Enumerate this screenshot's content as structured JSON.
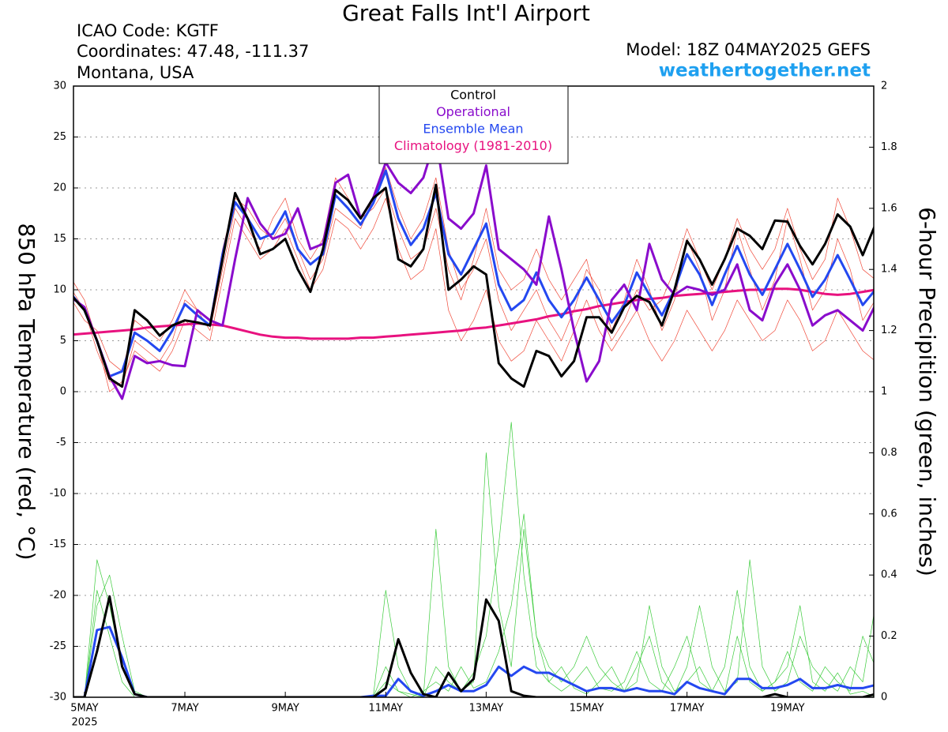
{
  "header": {
    "title": "Great Falls Int'l Airport",
    "info": [
      "ICAO Code: KGTF",
      "Coordinates: 47.48, -111.37",
      "Montana, USA"
    ],
    "model": "Model: 18Z 04MAY2025 GEFS",
    "site": "weathertogether.net"
  },
  "chart_data": {
    "type": "line",
    "ylabel": "850 hPa Temperature (red, °C)",
    "y2label": "6-hour Precipition (green, inches)",
    "x_sublabel": "2025",
    "legend": "upper center",
    "grid": true,
    "xlim": [
      -0.25,
      15.75
    ],
    "xticks": [
      {
        "value": 0,
        "label": "5MAY"
      },
      {
        "value": 2,
        "label": "7MAY"
      },
      {
        "value": 4,
        "label": "9MAY"
      },
      {
        "value": 6,
        "label": "11MAY"
      },
      {
        "value": 8,
        "label": "13MAY"
      },
      {
        "value": 10,
        "label": "15MAY"
      },
      {
        "value": 12,
        "label": "17MAY"
      },
      {
        "value": 14,
        "label": "19MAY"
      }
    ],
    "ylim": [
      -30,
      30
    ],
    "yticks": [
      -30,
      -25,
      -20,
      -15,
      -10,
      -5,
      0,
      5,
      10,
      15,
      20,
      25,
      30
    ],
    "y2lim": [
      0,
      2
    ],
    "y2ticks": [
      0,
      0.2,
      0.4,
      0.6,
      0.8,
      1,
      1.2,
      1.4,
      1.6,
      1.8,
      2
    ],
    "x": [
      -0.25,
      0,
      0.25,
      0.5,
      0.75,
      1,
      1.25,
      1.5,
      1.75,
      2,
      2.25,
      2.5,
      2.75,
      3,
      3.25,
      3.5,
      3.75,
      4,
      4.25,
      4.5,
      4.75,
      5,
      5.25,
      5.5,
      5.75,
      6,
      6.25,
      6.5,
      6.75,
      7,
      7.25,
      7.5,
      7.75,
      8,
      8.25,
      8.5,
      8.75,
      9,
      9.25,
      9.5,
      9.75,
      10,
      10.25,
      10.5,
      10.75,
      11,
      11.25,
      11.5,
      11.75,
      12,
      12.25,
      12.5,
      12.75,
      13,
      13.25,
      13.5,
      13.75,
      14,
      14.25,
      14.5,
      14.75,
      15,
      15.25,
      15.5,
      15.75
    ],
    "series": [
      {
        "color": "#f04a3a",
        "width": 0.7,
        "values": [
          10,
          8,
          4,
          1,
          0.5,
          5,
          4,
          3,
          5,
          9,
          8,
          7,
          14,
          19,
          18,
          16,
          15,
          17,
          14,
          11,
          13,
          18,
          17,
          16,
          19,
          22,
          18,
          15,
          17,
          21,
          14,
          10,
          12,
          15,
          9,
          6,
          8,
          10,
          7,
          5,
          8,
          12,
          10,
          6,
          9,
          13,
          10,
          6,
          9,
          15,
          12,
          7,
          10,
          16,
          12,
          8,
          11,
          17,
          13,
          8,
          10,
          15,
          12,
          7,
          9
        ]
      },
      {
        "color": "#f04a3a",
        "width": 0.7,
        "values": [
          9,
          7,
          6,
          3,
          2,
          7,
          6,
          5,
          7,
          10,
          8,
          6,
          12,
          18,
          16,
          14,
          17,
          19,
          15,
          13,
          15,
          21,
          19,
          17,
          18,
          20,
          16,
          13,
          14,
          18,
          12,
          9,
          13,
          18,
          12,
          10,
          11,
          14,
          11,
          9,
          11,
          13,
          8,
          5,
          7,
          10,
          8,
          9,
          12,
          16,
          13,
          10,
          13,
          17,
          14,
          12,
          14,
          18,
          14,
          11,
          13,
          19,
          16,
          12,
          11
        ]
      },
      {
        "color": "#f04a3a",
        "width": 0.7,
        "values": [
          11,
          9,
          5,
          0,
          1,
          4,
          3,
          2,
          4,
          7,
          6,
          5,
          11,
          17,
          15,
          13,
          14,
          16,
          13,
          10,
          12,
          17,
          16,
          14,
          16,
          19,
          14,
          11,
          12,
          16,
          8,
          5,
          7,
          10,
          5,
          3,
          4,
          7,
          5,
          3,
          6,
          9,
          6,
          4,
          6,
          8,
          5,
          3,
          5,
          8,
          6,
          4,
          6,
          9,
          7,
          5,
          6,
          9,
          7,
          4,
          5,
          8,
          6,
          4,
          3
        ]
      },
      {
        "axis": "y2",
        "color": "#3ccc3c",
        "width": 0.7,
        "values": [
          0,
          0,
          0.45,
          0.3,
          0.1,
          0.01,
          0,
          0,
          0,
          0,
          0,
          0,
          0,
          0,
          0,
          0,
          0,
          0,
          0,
          0,
          0,
          0,
          0,
          0,
          0,
          0.35,
          0.1,
          0.02,
          0,
          0.1,
          0.05,
          0.02,
          0.08,
          0.2,
          0.5,
          0.9,
          0.4,
          0.1,
          0.05,
          0.1,
          0.03,
          0.01,
          0.05,
          0.1,
          0.02,
          0.05,
          0.3,
          0.1,
          0.02,
          0.05,
          0.1,
          0.02,
          0.01,
          0.2,
          0.05,
          0.02,
          0.05,
          0.1,
          0.3,
          0.05,
          0.02,
          0.08,
          0.01,
          0.02,
          0
        ]
      },
      {
        "axis": "y2",
        "color": "#3ccc3c",
        "width": 0.7,
        "values": [
          0,
          0,
          0.3,
          0.4,
          0.2,
          0.02,
          0,
          0,
          0,
          0,
          0,
          0,
          0,
          0,
          0,
          0,
          0,
          0,
          0,
          0,
          0,
          0,
          0,
          0,
          0,
          0.05,
          0.02,
          0.01,
          0,
          0.55,
          0.1,
          0.02,
          0.05,
          0.8,
          0.3,
          0.1,
          0.55,
          0.2,
          0.1,
          0.05,
          0.1,
          0.2,
          0.1,
          0.05,
          0.02,
          0.1,
          0.2,
          0.05,
          0.01,
          0.1,
          0.3,
          0.1,
          0.02,
          0.05,
          0.45,
          0.1,
          0.02,
          0.05,
          0.2,
          0.1,
          0.05,
          0.02,
          0.1,
          0.05,
          0.3
        ]
      },
      {
        "axis": "y2",
        "color": "#3ccc3c",
        "width": 0.7,
        "values": [
          0,
          0,
          0.35,
          0.2,
          0.05,
          0,
          0,
          0,
          0,
          0,
          0,
          0,
          0,
          0,
          0,
          0,
          0,
          0,
          0,
          0,
          0,
          0,
          0,
          0,
          0,
          0.1,
          0.02,
          0,
          0.02,
          0.05,
          0.02,
          0.1,
          0.03,
          0.05,
          0.15,
          0.3,
          0.6,
          0.2,
          0.05,
          0.02,
          0.05,
          0.1,
          0.03,
          0.02,
          0.05,
          0.15,
          0.05,
          0.02,
          0.1,
          0.2,
          0.05,
          0.02,
          0.1,
          0.35,
          0.1,
          0.02,
          0.05,
          0.15,
          0.05,
          0.02,
          0.1,
          0.05,
          0.02,
          0.2,
          0.1
        ]
      },
      {
        "name": "Climatology (1981-2010)",
        "color": "#e8127f",
        "width": 3,
        "values": [
          5.6,
          5.7,
          5.8,
          5.9,
          6.0,
          6.1,
          6.3,
          6.4,
          6.5,
          6.6,
          6.7,
          6.6,
          6.5,
          6.2,
          5.9,
          5.6,
          5.4,
          5.3,
          5.3,
          5.2,
          5.2,
          5.2,
          5.2,
          5.3,
          5.3,
          5.4,
          5.5,
          5.6,
          5.7,
          5.8,
          5.9,
          6.0,
          6.2,
          6.3,
          6.5,
          6.7,
          6.9,
          7.1,
          7.4,
          7.6,
          7.9,
          8.1,
          8.4,
          8.6,
          8.8,
          9.0,
          9.1,
          9.2,
          9.4,
          9.5,
          9.6,
          9.7,
          9.8,
          9.9,
          10.0,
          10.0,
          10.1,
          10.1,
          10.0,
          9.8,
          9.6,
          9.5,
          9.6,
          9.8,
          10.0
        ]
      },
      {
        "name": "Ensemble Mean",
        "color": "#2448f0",
        "width": 3,
        "values": [
          9.5,
          8,
          5,
          1.5,
          2,
          5.8,
          5,
          4,
          6,
          8.6,
          7.5,
          6.5,
          13.5,
          18.6,
          17,
          15,
          15.5,
          17.7,
          14,
          12.5,
          13.5,
          19.3,
          18,
          16.4,
          18.5,
          21.7,
          17,
          14.4,
          16,
          19.5,
          13.5,
          11.5,
          14,
          16.5,
          10.5,
          8,
          9,
          11.7,
          9,
          7.3,
          9,
          11.2,
          9,
          6.8,
          8.5,
          11.7,
          9.5,
          7.5,
          10,
          13.5,
          11.5,
          8.5,
          11.5,
          14.3,
          11.5,
          9.5,
          12,
          14.5,
          12,
          9.3,
          11,
          13.4,
          11,
          8.5,
          10
        ]
      },
      {
        "axis": "y2",
        "color": "#2448f0",
        "width": 3,
        "values": [
          0,
          0,
          0.22,
          0.23,
          0.13,
          0.01,
          0,
          0,
          0,
          0,
          0,
          0,
          0,
          0,
          0,
          0,
          0,
          0,
          0,
          0,
          0,
          0,
          0,
          0,
          0.005,
          0.005,
          0.06,
          0.02,
          0.005,
          0.02,
          0.04,
          0.02,
          0.02,
          0.04,
          0.1,
          0.07,
          0.1,
          0.08,
          0.08,
          0.06,
          0.04,
          0.02,
          0.03,
          0.03,
          0.02,
          0.03,
          0.02,
          0.02,
          0.01,
          0.05,
          0.03,
          0.02,
          0.01,
          0.06,
          0.06,
          0.03,
          0.03,
          0.04,
          0.06,
          0.03,
          0.03,
          0.04,
          0.03,
          0.03,
          0.04
        ]
      },
      {
        "name": "Operational",
        "color": "#8a0ccc",
        "width": 3,
        "values": [
          9.2,
          8.3,
          5,
          1.5,
          -0.7,
          3.5,
          2.8,
          3,
          2.6,
          2.5,
          8,
          7,
          6.5,
          13,
          19,
          16.5,
          15,
          15.5,
          18,
          14,
          14.5,
          20.5,
          21.3,
          17,
          19,
          22.5,
          20.5,
          19.5,
          21,
          25,
          17,
          16,
          17.5,
          22.2,
          14,
          13,
          12,
          10.5,
          17.2,
          12,
          6,
          1,
          3,
          9,
          10.5,
          8,
          14.5,
          11,
          9.5,
          10.3,
          10,
          9.5,
          10,
          12.5,
          8,
          7,
          10.5,
          12.5,
          10,
          6.5,
          7.5,
          8,
          7,
          6,
          8.5
        ]
      },
      {
        "name": "Control",
        "color": "#000000",
        "width": 3,
        "values": [
          9.4,
          8,
          5,
          1.3,
          0.5,
          8,
          7,
          5.5,
          6.5,
          7,
          6.8,
          6.5,
          13,
          19.5,
          17,
          13.5,
          14,
          15,
          12,
          9.8,
          14,
          19.8,
          18.8,
          17,
          19,
          20,
          13,
          12.3,
          14,
          20.3,
          10,
          11,
          12.3,
          11.5,
          2.8,
          1.3,
          0.5,
          4,
          3.5,
          1.5,
          3,
          7.3,
          7.3,
          5.8,
          8.3,
          9.4,
          8.8,
          6.5,
          10,
          14.8,
          13,
          10.5,
          13,
          16,
          15.3,
          14,
          16.8,
          16.7,
          14.3,
          12.5,
          14.5,
          17.4,
          16.2,
          13.4,
          16.4
        ]
      },
      {
        "axis": "y2",
        "color": "#000000",
        "width": 3,
        "values": [
          0,
          0,
          0.15,
          0.33,
          0.1,
          0.01,
          0,
          0,
          0,
          0,
          0,
          0,
          0,
          0,
          0,
          0,
          0,
          0,
          0,
          0,
          0,
          0,
          0,
          0,
          0,
          0.03,
          0.19,
          0.08,
          0.01,
          0,
          0.08,
          0.02,
          0.06,
          0.32,
          0.25,
          0.02,
          0.005,
          0,
          0,
          0,
          0,
          0,
          0,
          0,
          0,
          0,
          0,
          0,
          0,
          0,
          0,
          0,
          0,
          0,
          0,
          0,
          0.01,
          0,
          0,
          0,
          0,
          0,
          0,
          0,
          0.01
        ]
      }
    ]
  }
}
